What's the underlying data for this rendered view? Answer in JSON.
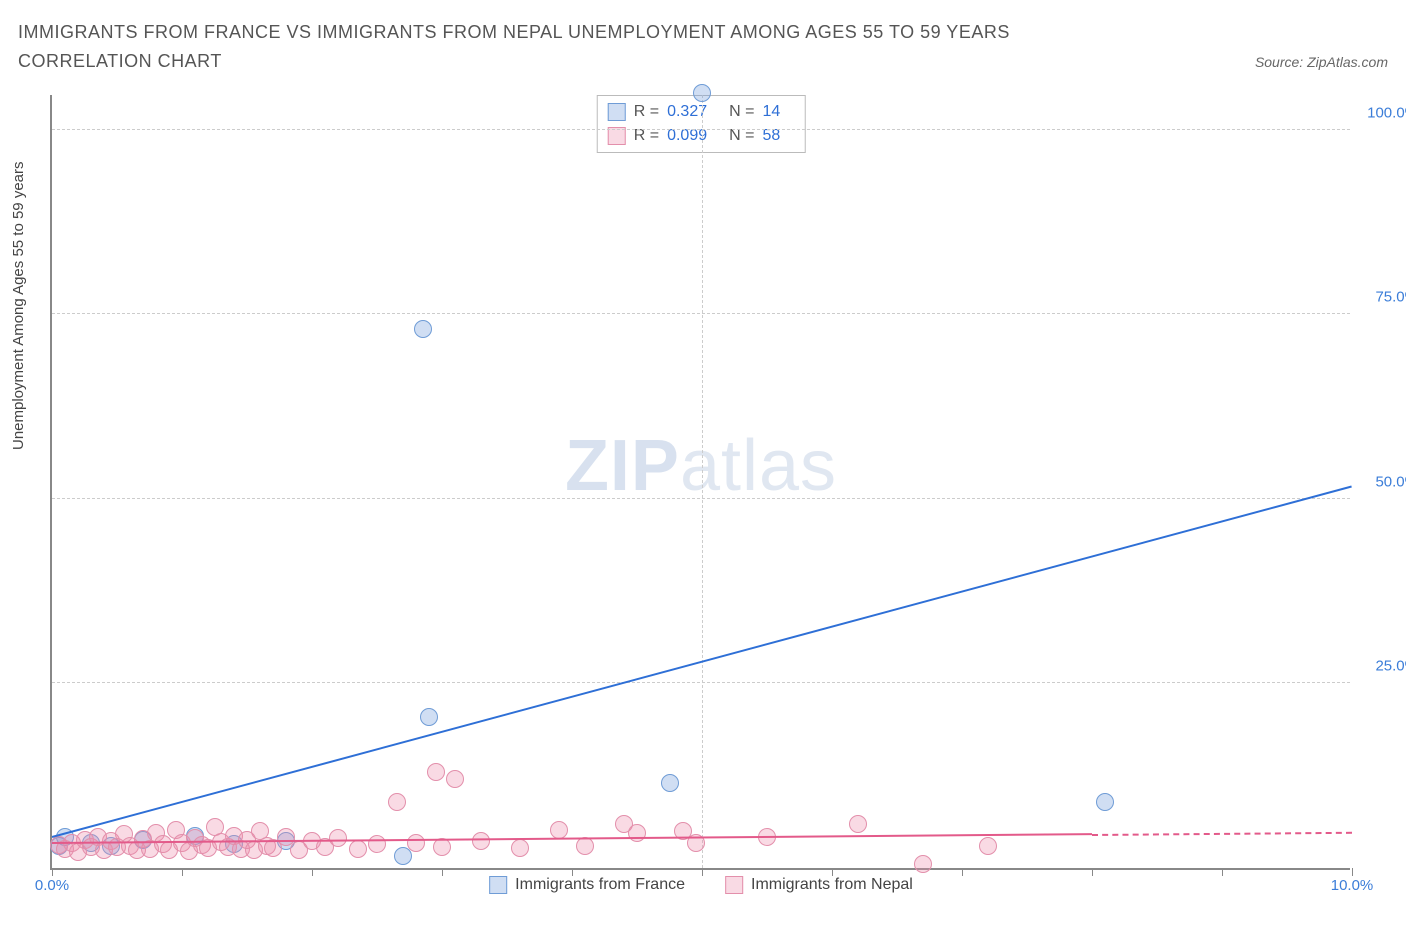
{
  "title": "IMMIGRANTS FROM FRANCE VS IMMIGRANTS FROM NEPAL UNEMPLOYMENT AMONG AGES 55 TO 59 YEARS CORRELATION CHART",
  "source": "Source: ZipAtlas.com",
  "ylabel": "Unemployment Among Ages 55 to 59 years",
  "watermark_a": "ZIP",
  "watermark_b": "atlas",
  "chart": {
    "type": "scatter",
    "xlim": [
      0,
      10
    ],
    "ylim": [
      0,
      105
    ],
    "xtick_labels": [
      {
        "pos": 0.0,
        "label": "0.0%"
      },
      {
        "pos": 10.0,
        "label": "10.0%"
      }
    ],
    "xtick_marks": [
      0,
      1,
      2,
      3,
      4,
      5,
      6,
      7,
      8,
      9,
      10
    ],
    "ytick_labels": [
      {
        "pos": 25,
        "label": "25.0%"
      },
      {
        "pos": 50,
        "label": "50.0%"
      },
      {
        "pos": 75,
        "label": "75.0%"
      },
      {
        "pos": 100,
        "label": "100.0%"
      }
    ],
    "grid_h": [
      25,
      50,
      75,
      100
    ],
    "grid_v": [
      5
    ],
    "grid_color": "#cccccc",
    "background": "#ffffff",
    "axis_color": "#888888",
    "tick_label_color": "#3b7dd8"
  },
  "series": [
    {
      "name": "Immigrants from France",
      "color_fill": "rgba(120,160,220,0.35)",
      "color_stroke": "#6f9cd6",
      "line_color": "#2e6fd6",
      "marker_r": 9,
      "R": "0.327",
      "N": "14",
      "trend": {
        "x0": 0.0,
        "y0": 4.0,
        "x1": 10.0,
        "y1": 51.5,
        "dash_from": 10.0
      },
      "points": [
        [
          0.05,
          3.0
        ],
        [
          0.1,
          4.2
        ],
        [
          0.3,
          3.4
        ],
        [
          0.45,
          3.0
        ],
        [
          0.7,
          3.8
        ],
        [
          1.1,
          4.4
        ],
        [
          1.4,
          3.2
        ],
        [
          1.8,
          3.6
        ],
        [
          2.7,
          1.6
        ],
        [
          2.85,
          73.0
        ],
        [
          2.9,
          20.5
        ],
        [
          4.75,
          11.5
        ],
        [
          5.0,
          105.0
        ],
        [
          8.1,
          9.0
        ]
      ]
    },
    {
      "name": "Immigrants from Nepal",
      "color_fill": "rgba(235,140,170,0.32)",
      "color_stroke": "#e38fab",
      "line_color": "#e35a8a",
      "marker_r": 9,
      "R": "0.099",
      "N": "58",
      "trend": {
        "x0": 0.0,
        "y0": 3.2,
        "x1": 8.0,
        "y1": 4.4,
        "dash_from": 8.0,
        "dash_to": 10.0
      },
      "points": [
        [
          0.05,
          3.1
        ],
        [
          0.1,
          2.6
        ],
        [
          0.15,
          3.4
        ],
        [
          0.2,
          2.2
        ],
        [
          0.25,
          3.8
        ],
        [
          0.3,
          2.9
        ],
        [
          0.35,
          4.2
        ],
        [
          0.4,
          2.4
        ],
        [
          0.45,
          3.6
        ],
        [
          0.5,
          2.8
        ],
        [
          0.55,
          4.6
        ],
        [
          0.6,
          3.0
        ],
        [
          0.65,
          2.4
        ],
        [
          0.7,
          3.9
        ],
        [
          0.75,
          2.6
        ],
        [
          0.8,
          4.8
        ],
        [
          0.85,
          3.2
        ],
        [
          0.9,
          2.5
        ],
        [
          0.95,
          5.2
        ],
        [
          1.0,
          3.4
        ],
        [
          1.05,
          2.3
        ],
        [
          1.1,
          4.0
        ],
        [
          1.15,
          3.1
        ],
        [
          1.2,
          2.7
        ],
        [
          1.25,
          5.6
        ],
        [
          1.3,
          3.5
        ],
        [
          1.35,
          2.9
        ],
        [
          1.4,
          4.3
        ],
        [
          1.45,
          2.6
        ],
        [
          1.5,
          3.8
        ],
        [
          1.55,
          2.4
        ],
        [
          1.6,
          5.0
        ],
        [
          1.65,
          3.0
        ],
        [
          1.7,
          2.7
        ],
        [
          1.8,
          4.2
        ],
        [
          1.9,
          2.5
        ],
        [
          2.0,
          3.6
        ],
        [
          2.1,
          2.8
        ],
        [
          2.2,
          4.0
        ],
        [
          2.35,
          2.6
        ],
        [
          2.5,
          3.2
        ],
        [
          2.65,
          9.0
        ],
        [
          2.8,
          3.4
        ],
        [
          2.95,
          13.0
        ],
        [
          3.0,
          2.9
        ],
        [
          3.1,
          12.0
        ],
        [
          3.3,
          3.6
        ],
        [
          3.6,
          2.7
        ],
        [
          3.9,
          5.2
        ],
        [
          4.1,
          3.0
        ],
        [
          4.4,
          6.0
        ],
        [
          4.5,
          4.8
        ],
        [
          4.85,
          5.0
        ],
        [
          4.95,
          3.4
        ],
        [
          5.5,
          4.2
        ],
        [
          6.2,
          6.0
        ],
        [
          6.7,
          0.6
        ],
        [
          7.2,
          3.0
        ]
      ]
    }
  ],
  "stats_box": {
    "rows": [
      {
        "swatch_fill": "rgba(120,160,220,0.35)",
        "swatch_stroke": "#6f9cd6",
        "R": "0.327",
        "N": "14"
      },
      {
        "swatch_fill": "rgba(235,140,170,0.32)",
        "swatch_stroke": "#e38fab",
        "R": "0.099",
        "N": "58"
      }
    ],
    "R_label": "R =",
    "N_label": "N ="
  },
  "bottom_legend": [
    {
      "swatch_fill": "rgba(120,160,220,0.35)",
      "swatch_stroke": "#6f9cd6",
      "label": "Immigrants from France"
    },
    {
      "swatch_fill": "rgba(235,140,170,0.32)",
      "swatch_stroke": "#e38fab",
      "label": "Immigrants from Nepal"
    }
  ]
}
